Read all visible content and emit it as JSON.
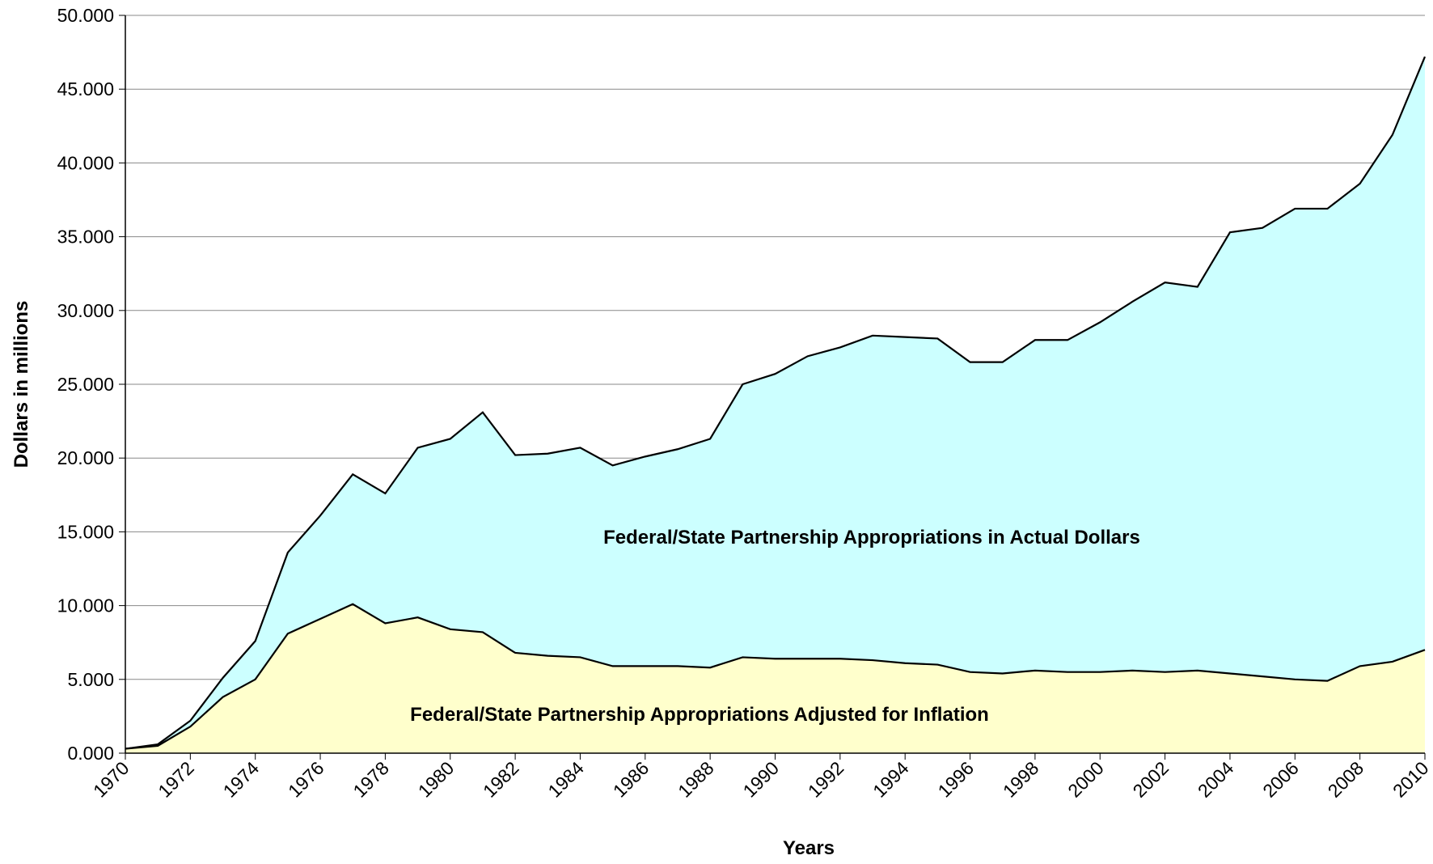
{
  "chart_data": {
    "type": "area",
    "xlabel": "Years",
    "ylabel": "Dollars in millions",
    "x": [
      1970,
      1971,
      1972,
      1973,
      1974,
      1975,
      1976,
      1977,
      1978,
      1979,
      1980,
      1981,
      1982,
      1983,
      1984,
      1985,
      1986,
      1987,
      1988,
      1989,
      1990,
      1991,
      1992,
      1993,
      1994,
      1995,
      1996,
      1997,
      1998,
      1999,
      2000,
      2001,
      2002,
      2003,
      2004,
      2005,
      2006,
      2007,
      2008,
      2009,
      2010
    ],
    "series": [
      {
        "name": "Federal/State Partnership Appropriations in Actual Dollars",
        "color": "#ccffff",
        "values": [
          0.3,
          0.6,
          2.2,
          5.1,
          7.6,
          13.6,
          16.1,
          18.9,
          17.6,
          20.7,
          21.3,
          23.1,
          20.2,
          20.3,
          20.7,
          19.5,
          20.1,
          20.6,
          21.3,
          25.0,
          25.7,
          26.9,
          27.5,
          28.3,
          28.2,
          28.1,
          26.5,
          26.5,
          28.0,
          28.0,
          29.2,
          30.6,
          31.9,
          31.6,
          35.3,
          35.6,
          36.9,
          36.9,
          38.6,
          41.9,
          47.2
        ]
      },
      {
        "name": "Federal/State Partnership Appropriations Adjusted for Inflation",
        "color": "#ffffcc",
        "values": [
          0.3,
          0.5,
          1.8,
          3.8,
          5.0,
          8.1,
          9.1,
          10.1,
          8.8,
          9.2,
          8.4,
          8.2,
          6.8,
          6.6,
          6.5,
          5.9,
          5.9,
          5.9,
          5.8,
          6.5,
          6.4,
          6.4,
          6.4,
          6.3,
          6.1,
          6.0,
          5.5,
          5.4,
          5.6,
          5.5,
          5.5,
          5.6,
          5.5,
          5.6,
          5.4,
          5.2,
          5.0,
          4.9,
          5.9,
          6.2,
          7.0
        ]
      }
    ],
    "xlim": [
      1970,
      2010
    ],
    "xticks": [
      1970,
      1972,
      1974,
      1976,
      1978,
      1980,
      1982,
      1984,
      1986,
      1988,
      1990,
      1992,
      1994,
      1996,
      1998,
      2000,
      2002,
      2004,
      2006,
      2008,
      2010
    ],
    "ylim": [
      0,
      50
    ],
    "yticks": [
      {
        "value": 0,
        "label": "0.000"
      },
      {
        "value": 5,
        "label": "5.000"
      },
      {
        "value": 10,
        "label": "10.000"
      },
      {
        "value": 15,
        "label": "15.000"
      },
      {
        "value": 20,
        "label": "20.000"
      },
      {
        "value": 25,
        "label": "25.000"
      },
      {
        "value": 30,
        "label": "30.000"
      },
      {
        "value": 35,
        "label": "35.000"
      },
      {
        "value": 40,
        "label": "40.000"
      },
      {
        "value": 45,
        "label": "45.000"
      },
      {
        "value": 50,
        "label": "50.000"
      }
    ],
    "grid": true
  }
}
